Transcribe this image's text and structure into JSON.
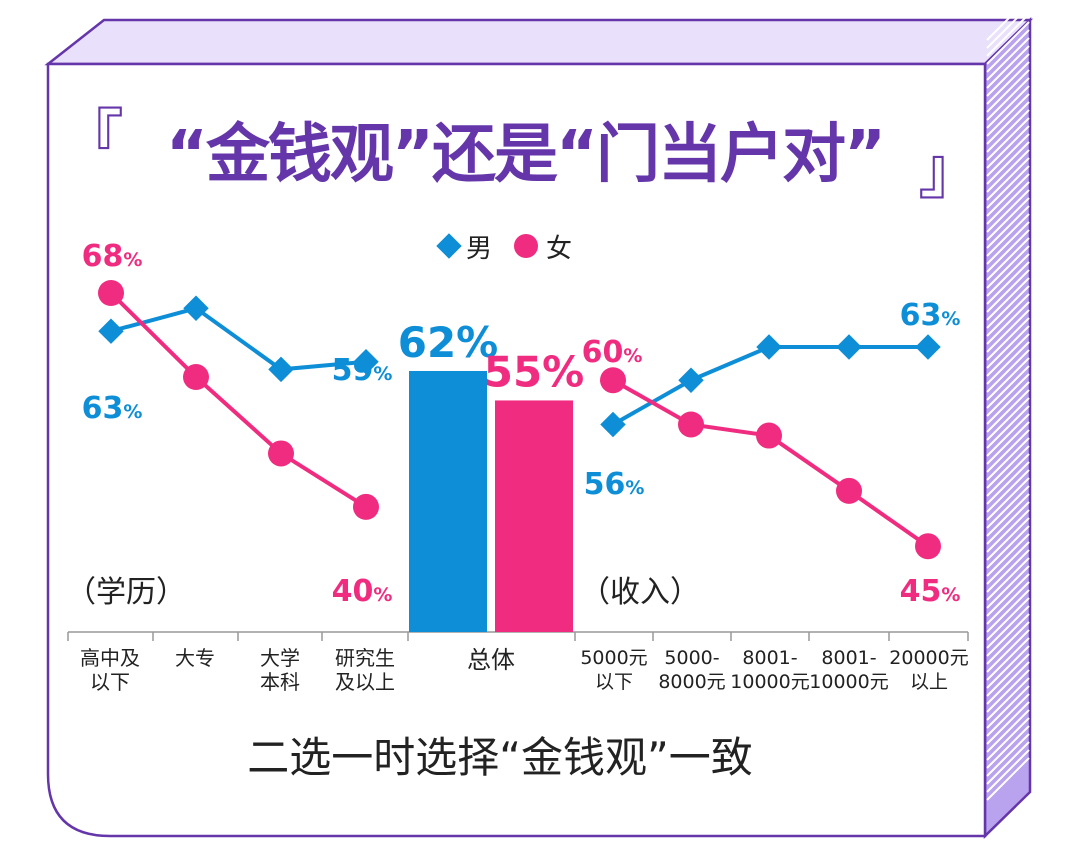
{
  "title": {
    "text": "“金钱观”还是“门当户对”",
    "open_bracket": "『",
    "close_bracket": "』"
  },
  "legend": {
    "male": "男",
    "female": "女"
  },
  "colors": {
    "male": "#0e8ed6",
    "female": "#f02c80",
    "frame": "#6436aa",
    "frame_fill": "#e9e0fb"
  },
  "sections": {
    "education": "（学历）",
    "income": "（收入）"
  },
  "footnote": "二选一时选择“金钱观”一致",
  "chart_data": [
    {
      "type": "line",
      "name": "学历",
      "categories": [
        "高中及\n以下",
        "大专",
        "大学\n本科",
        "研究生\n及以上"
      ],
      "series": [
        {
          "name": "男",
          "values": [
            63,
            66,
            58,
            59
          ]
        },
        {
          "name": "女",
          "values": [
            68,
            57,
            47,
            40
          ]
        }
      ],
      "labels": {
        "男": {
          "first": "63",
          "last": "59"
        },
        "女": {
          "first": "68",
          "last": "40"
        }
      },
      "unit": "%"
    },
    {
      "type": "bar",
      "name": "总体",
      "categories": [
        "总体"
      ],
      "series": [
        {
          "name": "男",
          "values": [
            62
          ]
        },
        {
          "name": "女",
          "values": [
            55
          ]
        }
      ],
      "unit": "%"
    },
    {
      "type": "line",
      "name": "收入",
      "categories": [
        "5000元\n以下",
        "5000-\n8000元",
        "8001-\n10000元",
        "8001-\n10000元",
        "20000元\n以上"
      ],
      "series": [
        {
          "name": "男",
          "values": [
            56,
            60,
            63,
            63,
            63
          ]
        },
        {
          "name": "女",
          "values": [
            60,
            56,
            55,
            50,
            45
          ]
        }
      ],
      "labels": {
        "男": {
          "first": "56",
          "last": "63"
        },
        "女": {
          "first": "60",
          "last": "45"
        }
      },
      "unit": "%"
    }
  ]
}
